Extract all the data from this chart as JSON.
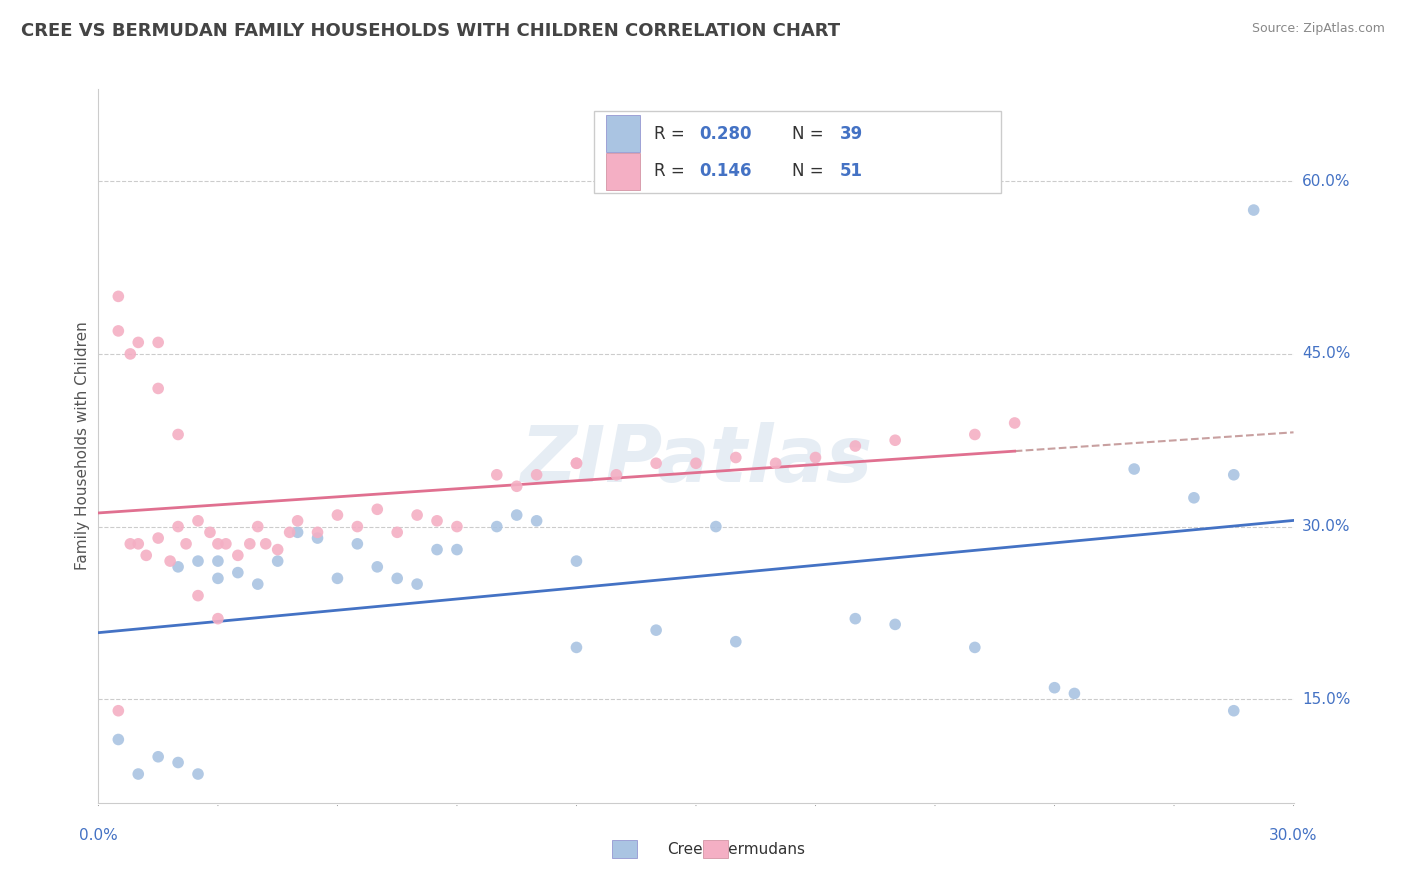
{
  "title": "CREE VS BERMUDAN FAMILY HOUSEHOLDS WITH CHILDREN CORRELATION CHART",
  "source": "Source: ZipAtlas.com",
  "ylabel": "Family Households with Children",
  "ytick_labels": [
    "15.0%",
    "30.0%",
    "45.0%",
    "60.0%"
  ],
  "ytick_values": [
    0.15,
    0.3,
    0.45,
    0.6
  ],
  "xlim": [
    0.0,
    0.3
  ],
  "ylim": [
    0.06,
    0.68
  ],
  "legend_R1": "0.280",
  "legend_N1": "39",
  "legend_R2": "0.146",
  "legend_N2": "51",
  "cree_color": "#aac4e2",
  "bermudans_color": "#f4afc4",
  "cree_line_color": "#4472c4",
  "bermudans_line_color": "#e07090",
  "trend_dashed_color": "#c8a0a0",
  "background_color": "#ffffff",
  "cree_x": [
    0.005,
    0.01,
    0.015,
    0.02,
    0.02,
    0.025,
    0.025,
    0.03,
    0.03,
    0.035,
    0.04,
    0.045,
    0.05,
    0.055,
    0.06,
    0.065,
    0.07,
    0.075,
    0.08,
    0.085,
    0.09,
    0.1,
    0.105,
    0.11,
    0.12,
    0.14,
    0.155,
    0.19,
    0.2,
    0.22,
    0.245,
    0.26,
    0.275,
    0.285,
    0.29,
    0.12,
    0.16,
    0.24,
    0.285
  ],
  "cree_y": [
    0.115,
    0.085,
    0.1,
    0.265,
    0.095,
    0.27,
    0.085,
    0.255,
    0.27,
    0.26,
    0.25,
    0.27,
    0.295,
    0.29,
    0.255,
    0.285,
    0.265,
    0.255,
    0.25,
    0.28,
    0.28,
    0.3,
    0.31,
    0.305,
    0.27,
    0.21,
    0.3,
    0.22,
    0.215,
    0.195,
    0.155,
    0.35,
    0.325,
    0.345,
    0.575,
    0.195,
    0.2,
    0.16,
    0.14
  ],
  "bermudans_x": [
    0.005,
    0.005,
    0.005,
    0.008,
    0.01,
    0.012,
    0.015,
    0.015,
    0.018,
    0.02,
    0.022,
    0.025,
    0.025,
    0.028,
    0.03,
    0.032,
    0.035,
    0.038,
    0.04,
    0.042,
    0.045,
    0.048,
    0.05,
    0.055,
    0.06,
    0.065,
    0.07,
    0.075,
    0.08,
    0.085,
    0.09,
    0.1,
    0.105,
    0.11,
    0.12,
    0.13,
    0.14,
    0.15,
    0.16,
    0.17,
    0.18,
    0.19,
    0.2,
    0.22,
    0.23,
    0.008,
    0.01,
    0.015,
    0.02,
    0.03,
    0.12
  ],
  "bermudans_y": [
    0.5,
    0.47,
    0.14,
    0.285,
    0.285,
    0.275,
    0.29,
    0.46,
    0.27,
    0.3,
    0.285,
    0.305,
    0.24,
    0.295,
    0.285,
    0.285,
    0.275,
    0.285,
    0.3,
    0.285,
    0.28,
    0.295,
    0.305,
    0.295,
    0.31,
    0.3,
    0.315,
    0.295,
    0.31,
    0.305,
    0.3,
    0.345,
    0.335,
    0.345,
    0.355,
    0.345,
    0.355,
    0.355,
    0.36,
    0.355,
    0.36,
    0.37,
    0.375,
    0.38,
    0.39,
    0.45,
    0.46,
    0.42,
    0.38,
    0.22,
    0.355
  ]
}
